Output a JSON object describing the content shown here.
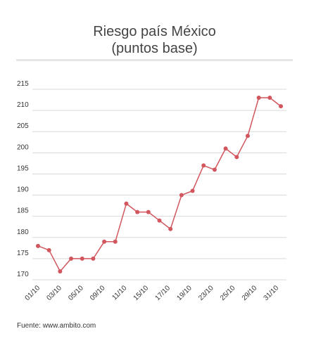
{
  "title_line1": "Riesgo país México",
  "title_line2": "(puntos base)",
  "source": "Fuente: www.ambito.com",
  "colors": {
    "series": "#d1565e",
    "grid": "#d9d9d9",
    "text": "#333333"
  },
  "chart_data": {
    "type": "line",
    "title": "Riesgo país México (puntos base)",
    "xlabel": "",
    "ylabel": "",
    "ylim": [
      170,
      215
    ],
    "yticks": [
      170,
      175,
      180,
      185,
      190,
      195,
      200,
      205,
      210,
      215
    ],
    "x_tick_labels": [
      "01/10",
      "03/10",
      "05/10",
      "09/10",
      "11/10",
      "15/10",
      "17/10",
      "19/10",
      "23/10",
      "25/10",
      "29/10",
      "31/10"
    ],
    "grid": true,
    "legend": "none",
    "series": [
      {
        "values": [
          178,
          177,
          172,
          175,
          175,
          175,
          179,
          179,
          188,
          186,
          186,
          184,
          182,
          190,
          191,
          197,
          196,
          201,
          199,
          204,
          213,
          213,
          211
        ]
      }
    ]
  }
}
